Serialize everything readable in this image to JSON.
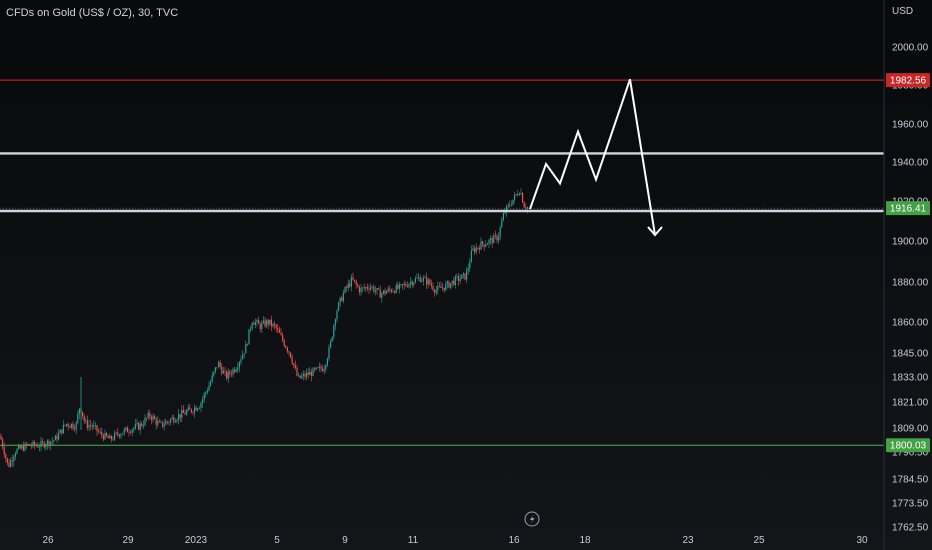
{
  "title": "CFDs on Gold (US$ / OZ), 30, TVC",
  "currency": "USD",
  "colors": {
    "background": "#0c0d10",
    "up_candle": "#26a69a",
    "down_candle": "#ef5350",
    "resistance_line": "#d32f2f",
    "support_line": "#4caf50",
    "price_tag_red": "#c62828",
    "price_tag_green": "#43a047",
    "zone_lines": "#d1d4dc",
    "projection_path": "#ffffff"
  },
  "chart_data": {
    "type": "candlestick",
    "y_ticks": [
      "2000.00",
      "1980.00",
      "1960.00",
      "1940.00",
      "1920.00",
      "1900.00",
      "1880.00",
      "1860.00",
      "1845.00",
      "1833.00",
      "1821.00",
      "1809.00",
      "1796.50",
      "1784.50",
      "1773.50",
      "1762.50"
    ],
    "x_ticks": [
      "26",
      "29",
      "2023",
      "5",
      "9",
      "11",
      "16",
      "18",
      "23",
      "25",
      "30"
    ],
    "horizontal_lines": [
      {
        "name": "resistance",
        "value": 1982.56,
        "label": "1982.56",
        "color": "#d32f2f"
      },
      {
        "name": "zone-upper",
        "value": 1944.5
      },
      {
        "name": "zone-lower",
        "value": 1915.0
      },
      {
        "name": "support",
        "value": 1800.03,
        "label": "1800.03",
        "color": "#4caf50"
      }
    ],
    "current_price": {
      "value": 1916.41,
      "label": "1916.41"
    },
    "price_path": [
      [
        0,
        1805
      ],
      [
        8,
        1790
      ],
      [
        15,
        1797
      ],
      [
        28,
        1800
      ],
      [
        40,
        1800
      ],
      [
        55,
        1803
      ],
      [
        66,
        1811
      ],
      [
        76,
        1810
      ],
      [
        80,
        1820
      ],
      [
        85,
        1811
      ],
      [
        92,
        1810
      ],
      [
        100,
        1806
      ],
      [
        110,
        1803
      ],
      [
        118,
        1806
      ],
      [
        128,
        1808
      ],
      [
        140,
        1810
      ],
      [
        150,
        1815
      ],
      [
        160,
        1810
      ],
      [
        175,
        1814
      ],
      [
        190,
        1817
      ],
      [
        200,
        1820
      ],
      [
        210,
        1830
      ],
      [
        218,
        1840
      ],
      [
        226,
        1833
      ],
      [
        236,
        1838
      ],
      [
        246,
        1848
      ],
      [
        252,
        1861
      ],
      [
        260,
        1858
      ],
      [
        268,
        1860
      ],
      [
        276,
        1857
      ],
      [
        284,
        1850
      ],
      [
        290,
        1845
      ],
      [
        298,
        1832
      ],
      [
        306,
        1834
      ],
      [
        316,
        1836
      ],
      [
        324,
        1838
      ],
      [
        330,
        1848
      ],
      [
        336,
        1865
      ],
      [
        344,
        1875
      ],
      [
        352,
        1881
      ],
      [
        360,
        1876
      ],
      [
        370,
        1878
      ],
      [
        380,
        1874
      ],
      [
        390,
        1876
      ],
      [
        400,
        1877
      ],
      [
        410,
        1880
      ],
      [
        420,
        1882
      ],
      [
        428,
        1880
      ],
      [
        436,
        1876
      ],
      [
        446,
        1878
      ],
      [
        456,
        1881
      ],
      [
        466,
        1883
      ],
      [
        472,
        1895
      ],
      [
        480,
        1898
      ],
      [
        490,
        1900
      ],
      [
        498,
        1902
      ],
      [
        504,
        1914
      ],
      [
        512,
        1920
      ],
      [
        520,
        1926
      ],
      [
        524,
        1918
      ],
      [
        530,
        1916
      ]
    ],
    "projection": [
      [
        530,
        1916
      ],
      [
        546,
        1939
      ],
      [
        560,
        1929
      ],
      [
        578,
        1956
      ],
      [
        596,
        1931
      ],
      [
        630,
        1983
      ],
      [
        655,
        1903
      ]
    ]
  }
}
